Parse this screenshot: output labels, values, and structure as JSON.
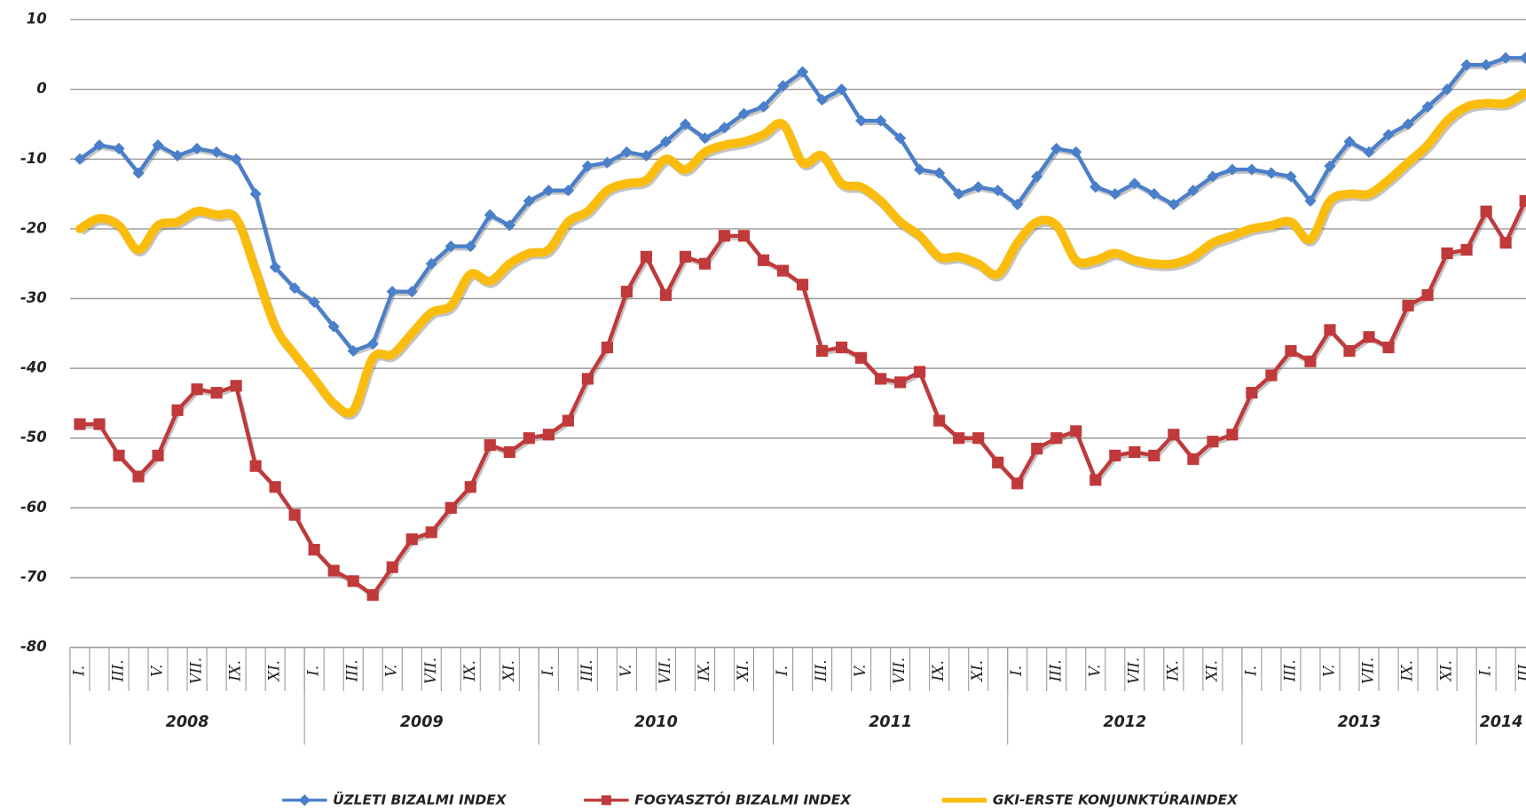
{
  "chart_data": {
    "type": "line",
    "categories": [
      "I.",
      null,
      "III.",
      null,
      "V.",
      null,
      "VII.",
      null,
      "IX.",
      null,
      "XI.",
      null,
      "I.",
      null,
      "III.",
      null,
      "V.",
      null,
      "VII.",
      null,
      "IX.",
      null,
      "XI.",
      null,
      "I.",
      null,
      "III.",
      null,
      "V.",
      null,
      "VII.",
      null,
      "IX.",
      null,
      "XI.",
      null,
      "I.",
      null,
      "III.",
      null,
      "V.",
      null,
      "VII.",
      null,
      "IX.",
      null,
      "XI.",
      null,
      "I.",
      null,
      "III.",
      null,
      "V.",
      null,
      "VII.",
      null,
      "IX.",
      null,
      "XI.",
      null,
      "I.",
      null,
      "III.",
      null,
      "V.",
      null,
      "VII.",
      null,
      "IX.",
      null,
      "XI.",
      null,
      "I.",
      null,
      "III."
    ],
    "years": [
      "2008",
      "2009",
      "2010",
      "2011",
      "2012",
      "2013",
      "2014"
    ],
    "series": [
      {
        "name": "ÜZLETI BIZALMI INDEX",
        "color": "#4a7fc9",
        "marker": "diamond",
        "values": [
          -10,
          -8,
          -8.5,
          -12,
          -8,
          -9.5,
          -8.5,
          -9,
          -10,
          -15,
          -25.5,
          -28.5,
          -30.5,
          -34,
          -37.5,
          -36.5,
          -29,
          -29,
          -25,
          -22.5,
          -22.5,
          -18,
          -19.5,
          -16,
          -14.5,
          -14.5,
          -11,
          -10.5,
          -9,
          -9.5,
          -7.5,
          -5,
          -7,
          -5.5,
          -3.5,
          -2.5,
          0.5,
          2.5,
          -1.5,
          0,
          -4.5,
          -4.5,
          -7,
          -11.5,
          -12,
          -15,
          -14,
          -14.5,
          -16.5,
          -12.5,
          -8.5,
          -9,
          -14,
          -15,
          -13.5,
          -15,
          -16.5,
          -14.5,
          -12.5,
          -11.5,
          -11.5,
          -12,
          -12.5,
          -16,
          -11,
          -7.5,
          -9,
          -6.5,
          -5,
          -2.5,
          0,
          3.5,
          3.5,
          4.5,
          4.5
        ]
      },
      {
        "name": "FOGYASZTÓI BIZALMI INDEX",
        "color": "#c0393b",
        "marker": "square",
        "values": [
          -48,
          -48,
          -52.5,
          -55.5,
          -52.5,
          -46,
          -43,
          -43.5,
          -42.5,
          -54,
          -57,
          -61,
          -66,
          -69,
          -70.5,
          -72.5,
          -68.5,
          -64.5,
          -63.5,
          -60,
          -57,
          -51,
          -52,
          -50,
          -49.5,
          -47.5,
          -41.5,
          -37,
          -29,
          -24,
          -29.5,
          -24,
          -25,
          -21,
          -21,
          -24.5,
          -26,
          -28,
          -37.5,
          -37,
          -38.5,
          -41.5,
          -42,
          -40.5,
          -47.5,
          -50,
          -50,
          -53.5,
          -56.5,
          -51.5,
          -50,
          -49,
          -56,
          -52.5,
          -52,
          -52.5,
          -49.5,
          -53,
          -50.5,
          -49.5,
          -43.5,
          -41,
          -37.5,
          -39,
          -34.5,
          -37.5,
          -35.5,
          -37,
          -31,
          -29.5,
          -23.5,
          -23,
          -17.5,
          -22,
          -16
        ]
      },
      {
        "name": "GKI-ERSTE KONJUNKTÚRAINDEX",
        "color": "#fbbd0d",
        "marker": "none",
        "smooth": true,
        "values": [
          -20,
          -18.5,
          -19.5,
          -23,
          -19.5,
          -19,
          -17.5,
          -18,
          -18.5,
          -26,
          -34,
          -38,
          -41.5,
          -45,
          -46,
          -38.5,
          -38,
          -35,
          -32,
          -31,
          -26.5,
          -27.5,
          -25,
          -23.5,
          -23,
          -19,
          -17.5,
          -14.5,
          -13.5,
          -13,
          -10,
          -11.5,
          -9,
          -8,
          -7.5,
          -6.5,
          -5,
          -10.5,
          -9.5,
          -13.5,
          -14,
          -16,
          -19,
          -21,
          -24,
          -24,
          -25,
          -26.5,
          -22,
          -19,
          -19.5,
          -24.5,
          -24.5,
          -23.5,
          -24.5,
          -25,
          -25,
          -24,
          -22,
          -21,
          -20,
          -19.5,
          -19,
          -21.5,
          -16,
          -15,
          -15,
          -13,
          -10.5,
          -8,
          -4.5,
          -2.5,
          -2,
          -2,
          -0.5
        ]
      }
    ],
    "ylim": [
      -80,
      10
    ],
    "yticks": [
      10,
      0,
      -10,
      -20,
      -30,
      -40,
      -50,
      -60,
      -70,
      -80
    ],
    "grid": true,
    "legend": "bottom"
  }
}
